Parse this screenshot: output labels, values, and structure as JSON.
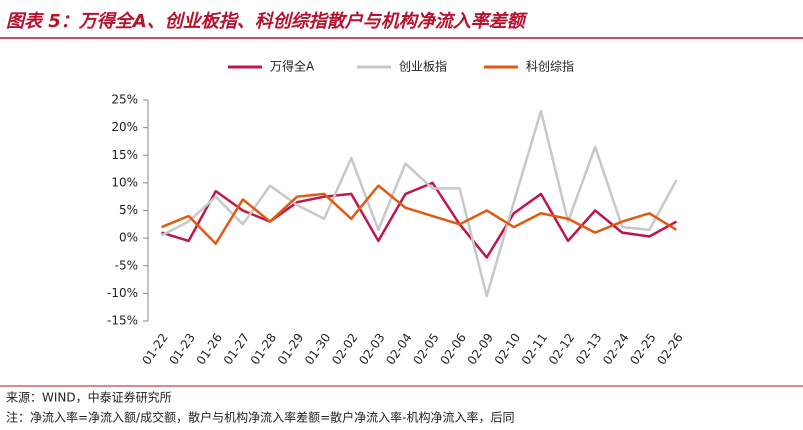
{
  "chart_data": {
    "type": "line",
    "title": "图表 5：万得全A、创业板指、科创综指散户与机构净流入率差额",
    "categories": [
      "01-22",
      "01-23",
      "01-26",
      "01-27",
      "01-28",
      "01-29",
      "01-30",
      "02-02",
      "02-03",
      "02-04",
      "02-05",
      "02-06",
      "02-09",
      "02-10",
      "02-11",
      "02-12",
      "02-13",
      "02-24",
      "02-25",
      "02-26"
    ],
    "series": [
      {
        "name": "万得全A",
        "color": "#c0154d",
        "values": [
          1,
          -0.5,
          8.5,
          5,
          3,
          6.5,
          7.5,
          8,
          -0.5,
          8,
          10,
          2.5,
          -3.5,
          4.5,
          8,
          -0.5,
          5,
          1,
          0.3,
          3
        ]
      },
      {
        "name": "创业板指",
        "color": "#c8c8c8",
        "values": [
          0.5,
          3,
          7.5,
          2.5,
          9.5,
          6,
          3.5,
          14.5,
          1.5,
          13.5,
          9,
          9,
          -10.5,
          6.5,
          23,
          3,
          16.5,
          2,
          1.5,
          10.5
        ]
      },
      {
        "name": "科创综指",
        "color": "#e05a12",
        "values": [
          2,
          4,
          -1,
          7,
          3,
          7.5,
          8,
          3.5,
          9.5,
          5.5,
          4,
          2.5,
          5,
          2,
          4.5,
          3.5,
          1,
          3,
          4.5,
          1.5
        ]
      }
    ],
    "ylim": [
      -15,
      25
    ],
    "yticks": [
      {
        "value": -15,
        "label": "-15%"
      },
      {
        "value": -10,
        "label": "-10%"
      },
      {
        "value": -5,
        "label": "-5%"
      },
      {
        "value": 0,
        "label": "0%"
      },
      {
        "value": 5,
        "label": "5%"
      },
      {
        "value": 10,
        "label": "10%"
      },
      {
        "value": 15,
        "label": "15%"
      },
      {
        "value": 20,
        "label": "20%"
      },
      {
        "value": 25,
        "label": "25%"
      }
    ],
    "grid": false,
    "legend": "top",
    "source": "来源：WIND，中泰证券研究所",
    "note": "注：净流入率=净流入额/成交额，散户与机构净流入率差额=散户净流入率-机构净流入率，后同"
  }
}
